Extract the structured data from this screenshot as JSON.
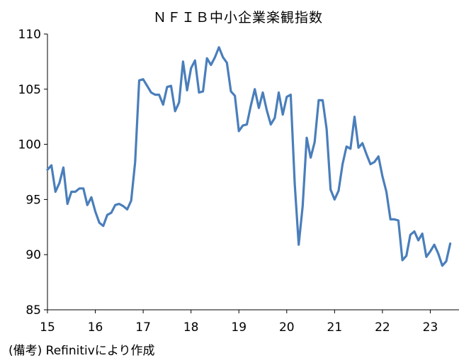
{
  "chart_data": {
    "type": "line",
    "title": "ＮＦＩＢ中小企業楽観指数",
    "xlabel": "",
    "ylabel": "",
    "ylim": [
      85,
      110
    ],
    "yticks": [
      85,
      90,
      95,
      100,
      105,
      110
    ],
    "xlim": [
      2015.0,
      2023.6
    ],
    "xticks": [
      {
        "value": 2015,
        "label": "15"
      },
      {
        "value": 2016,
        "label": "16"
      },
      {
        "value": 2017,
        "label": "17"
      },
      {
        "value": 2018,
        "label": "18"
      },
      {
        "value": 2019,
        "label": "19"
      },
      {
        "value": 2020,
        "label": "20"
      },
      {
        "value": 2021,
        "label": "21"
      },
      {
        "value": 2022,
        "label": "22"
      },
      {
        "value": 2023,
        "label": "23"
      }
    ],
    "grid": false,
    "legend": "none",
    "line_color": "#4a7ebb",
    "series": [
      {
        "x": [
          2015.0,
          2015.083,
          2015.167,
          2015.25,
          2015.333,
          2015.417,
          2015.5,
          2015.583,
          2015.667,
          2015.75,
          2015.833,
          2015.917,
          2016.0,
          2016.083,
          2016.167,
          2016.25,
          2016.333,
          2016.417,
          2016.5,
          2016.583,
          2016.667,
          2016.75,
          2016.833,
          2016.917,
          2017.0,
          2017.083,
          2017.167,
          2017.25,
          2017.333,
          2017.417,
          2017.5,
          2017.583,
          2017.667,
          2017.75,
          2017.833,
          2017.917,
          2018.0,
          2018.083,
          2018.167,
          2018.25,
          2018.333,
          2018.417,
          2018.5,
          2018.583,
          2018.667,
          2018.75,
          2018.833,
          2018.917,
          2019.0,
          2019.083,
          2019.167,
          2019.25,
          2019.333,
          2019.417,
          2019.5,
          2019.583,
          2019.667,
          2019.75,
          2019.833,
          2019.917,
          2020.0,
          2020.083,
          2020.167,
          2020.25,
          2020.333,
          2020.417,
          2020.5,
          2020.583,
          2020.667,
          2020.75,
          2020.833,
          2020.917,
          2021.0,
          2021.083,
          2021.167,
          2021.25,
          2021.333,
          2021.417,
          2021.5,
          2021.583,
          2021.667,
          2021.75,
          2021.833,
          2021.917,
          2022.0,
          2022.083,
          2022.167,
          2022.25,
          2022.333,
          2022.417,
          2022.5,
          2022.583,
          2022.667,
          2022.75,
          2022.833,
          2022.917,
          2023.0,
          2023.083,
          2023.167,
          2023.25,
          2023.333,
          2023.417
        ],
        "values": [
          97.7,
          98.1,
          95.7,
          96.5,
          97.9,
          94.6,
          95.7,
          95.7,
          96.0,
          96.0,
          94.5,
          95.2,
          93.9,
          92.9,
          92.6,
          93.6,
          93.8,
          94.5,
          94.6,
          94.4,
          94.1,
          94.9,
          98.4,
          105.8,
          105.9,
          105.3,
          104.7,
          104.5,
          104.5,
          103.6,
          105.2,
          105.3,
          103.0,
          103.8,
          107.5,
          104.9,
          106.9,
          107.6,
          104.7,
          104.8,
          107.8,
          107.2,
          107.9,
          108.8,
          107.9,
          107.4,
          104.8,
          104.4,
          101.2,
          101.7,
          101.8,
          103.5,
          105.0,
          103.3,
          104.7,
          103.1,
          101.8,
          102.4,
          104.7,
          102.7,
          104.3,
          104.5,
          96.4,
          90.9,
          94.4,
          100.6,
          98.8,
          100.2,
          104.0,
          104.0,
          101.4,
          95.9,
          95.0,
          95.8,
          98.2,
          99.8,
          99.6,
          102.5,
          99.7,
          100.1,
          99.1,
          98.2,
          98.4,
          98.9,
          97.1,
          95.7,
          93.2,
          93.2,
          93.1,
          89.5,
          89.9,
          91.8,
          92.1,
          91.3,
          91.9,
          89.8,
          90.3,
          90.9,
          90.1,
          89.0,
          89.4,
          91.0
        ]
      }
    ]
  },
  "source_note": "(備考) Refinitivにより作成"
}
